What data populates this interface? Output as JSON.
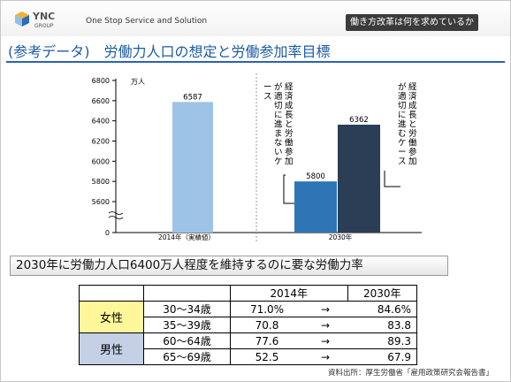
{
  "header": {
    "logo_main": "YNC",
    "logo_sub": "GROUP",
    "tagline": "One Stop Service and Solution",
    "section_title": "働き方改革は何を求めているか"
  },
  "page_title": "(参考データ)　労働力人口の想定と労働参加率目標",
  "chart_data": {
    "type": "bar",
    "unit_label": "万人",
    "y_ticks": [
      0,
      5600,
      5800,
      6000,
      6200,
      6400,
      6600,
      6800
    ],
    "ylim": [
      5600,
      6800
    ],
    "axis_break": true,
    "bars": [
      {
        "group": "2014年（実績値）",
        "value": 6587,
        "color": "#9dc3e6"
      },
      {
        "group": "2030年",
        "value": 5800,
        "color": "#2e75b6"
      },
      {
        "group": "2030年",
        "value": 6362,
        "color": "#2c3e55"
      }
    ],
    "categories": [
      "2014年（実績値）",
      "2030年"
    ],
    "annotations": [
      {
        "text": "経済成長と労働参加が適切に進まないケース"
      },
      {
        "text": "経済成長と労働参加が適切に進むケース"
      }
    ]
  },
  "subtitle": "2030年に労働力人口6400万人程度を維持するのに要な労働力率",
  "table": {
    "headers": [
      "2014年",
      "2030年"
    ],
    "arrow": "→",
    "groups": [
      {
        "label": "女性",
        "color": "#fff799",
        "rows": [
          {
            "age": "30～34歳",
            "y2014": "71.0%",
            "y2030": "84.6%"
          },
          {
            "age": "35～39歳",
            "y2014": "70.8",
            "y2030": "83.8"
          }
        ]
      },
      {
        "label": "男性",
        "color": "#c5cfe6",
        "rows": [
          {
            "age": "60～64歳",
            "y2014": "77.6",
            "y2030": "89.3"
          },
          {
            "age": "65～69歳",
            "y2014": "52.5",
            "y2030": "67.9"
          }
        ]
      }
    ]
  },
  "footer": "資料出所：厚生労働省「雇用政策研究会報告書」"
}
